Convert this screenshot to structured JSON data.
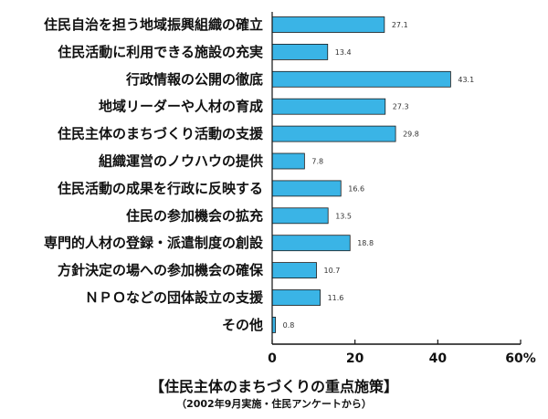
{
  "chart_data": {
    "type": "bar",
    "orientation": "horizontal",
    "title": "【住民主体のまちづくりの重点施策】",
    "subtitle": "（2002年9月実施・住民アンケートから）",
    "categories": [
      "住民自治を担う地域振興組織の確立",
      "住民活動に利用できる施設の充実",
      "行政情報の公開の徹底",
      "地域リーダーや人材の育成",
      "住民主体のまちづくり活動の支援",
      "組織運営のノウハウの提供",
      "住民活動の成果を行政に反映する",
      "住民の参加機会の拡充",
      "専門的人材の登録・派遣制度の創設",
      "方針決定の場への参加機会の確保",
      "ＮＰＯなどの団体設立の支援",
      "その他"
    ],
    "values": [
      27.1,
      13.4,
      43.1,
      27.3,
      29.8,
      7.8,
      16.6,
      13.5,
      18.8,
      10.7,
      11.6,
      0.8
    ],
    "value_labels": [
      "27.1",
      "13.4",
      "43.1",
      "27.3",
      "29.8",
      "7.8",
      "16.6",
      "13.5",
      "18.8",
      "10.7",
      "11.6",
      "0.8"
    ],
    "xlim": [
      0,
      60
    ],
    "xticks": [
      0,
      20,
      40,
      60
    ],
    "xtick_labels": [
      "0",
      "20",
      "40",
      "60%"
    ],
    "xlabel": "",
    "ylabel": "",
    "grid": false,
    "legend": "none",
    "bar_color": "#3ab4e6",
    "bar_stroke": "#1a1a1a"
  }
}
